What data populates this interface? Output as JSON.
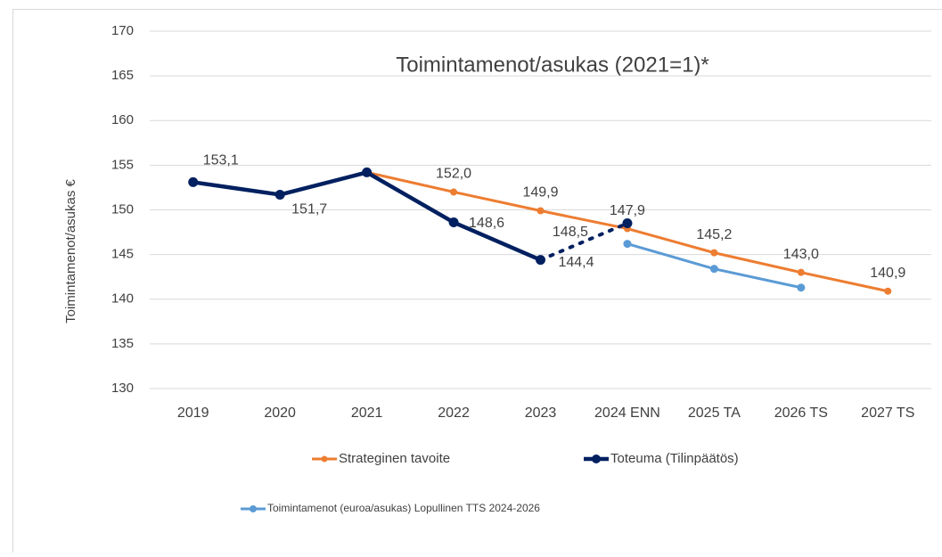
{
  "chart_data": {
    "type": "line",
    "title": "Toimintamenot/asukas (2021=1)*",
    "y_label": "Toimintamenot/asukas €",
    "categories": [
      "2019",
      "2020",
      "2021",
      "2022",
      "2023",
      "2024 ENN",
      "2025 TA",
      "2026 TS",
      "2027 TS"
    ],
    "series": [
      {
        "name": "Strateginen tavoite",
        "color": "#ed7d31",
        "values": [
          null,
          null,
          154.2,
          152.0,
          149.9,
          147.9,
          145.2,
          143.0,
          140.9
        ],
        "value_labels": [
          null,
          null,
          null,
          "152,0",
          "149,9",
          "147,9",
          "145,2",
          "143,0",
          "140,9"
        ]
      },
      {
        "name": "Toteuma (Tilinpäätös)",
        "color": "#002060",
        "dotted_last_segment": true,
        "values": [
          153.1,
          151.7,
          154.2,
          148.6,
          144.4,
          148.5,
          null,
          null,
          null
        ],
        "value_labels": [
          "153,1",
          "151,7",
          null,
          "148,6",
          "144,4",
          "148,5",
          null,
          null,
          null
        ]
      },
      {
        "name": "Toimintamenot (euroa/asukas) Lopullinen TTS 2024-2026",
        "color": "#5b9bd5",
        "values": [
          null,
          null,
          null,
          null,
          null,
          146.2,
          143.4,
          141.3,
          null
        ]
      }
    ],
    "ylim": [
      130,
      170
    ],
    "yticks": [
      130,
      135,
      140,
      145,
      150,
      155,
      160,
      165,
      170
    ],
    "grid": true
  }
}
